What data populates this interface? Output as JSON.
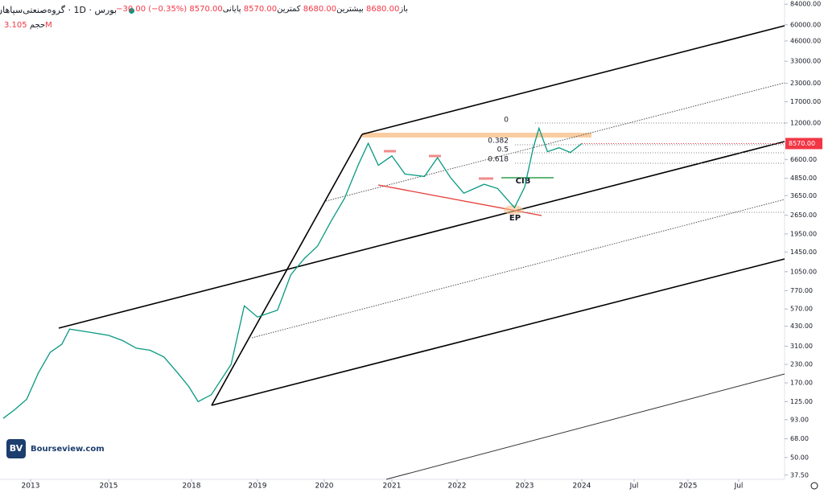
{
  "header": {
    "exchange": "بورس",
    "interval": "1D",
    "symbol": "گروه‌صنعتی‌سپاهان",
    "open_label": "باز",
    "open": "8680.00",
    "high_label": "بیشترین",
    "high": "8680.00",
    "low_label": "کمترین",
    "low": "8570.00",
    "close_label": "پایانی",
    "close": "8570.00",
    "change": "−30.00 (−0.35%)",
    "volume_label": "حجم",
    "volume": "3.105M"
  },
  "watermark": "Bourseview.com",
  "chart_data": {
    "type": "line",
    "log_scale": true,
    "color": "#089981",
    "x": [
      2012.3,
      2012.6,
      2012.9,
      2013.2,
      2013.5,
      2013.8,
      2014.0,
      2014.5,
      2015.0,
      2015.5,
      2016.0,
      2016.5,
      2017.0,
      2017.5,
      2017.9,
      2018.1,
      2018.3,
      2018.6,
      2018.8,
      2019.0,
      2019.3,
      2019.5,
      2019.7,
      2019.9,
      2020.1,
      2020.3,
      2020.5,
      2020.65,
      2020.8,
      2021.0,
      2021.2,
      2021.5,
      2021.7,
      2021.9,
      2022.1,
      2022.4,
      2022.6,
      2022.85,
      2023.0,
      2023.15,
      2023.25,
      2023.4,
      2023.6,
      2023.8,
      2024.0
    ],
    "values": [
      95,
      110,
      130,
      200,
      280,
      320,
      410,
      390,
      370,
      340,
      300,
      290,
      260,
      200,
      160,
      125,
      140,
      230,
      600,
      500,
      560,
      1000,
      1300,
      1600,
      2400,
      3500,
      6000,
      8600,
      6000,
      7000,
      5200,
      5000,
      6800,
      4900,
      3800,
      4400,
      4100,
      3000,
      4200,
      8000,
      11000,
      7500,
      8000,
      7400,
      8570
    ],
    "last_label": "8570.00",
    "ylim": [
      35,
      90000
    ],
    "yticks": [
      {
        "value": 84000,
        "label": "84000.00"
      },
      {
        "value": 60000,
        "label": "60000.00"
      },
      {
        "value": 46000,
        "label": "46000.00"
      },
      {
        "value": 33000,
        "label": "33000.00"
      },
      {
        "value": 23000,
        "label": "23000.00"
      },
      {
        "value": 17000,
        "label": "17000.00"
      },
      {
        "value": 12000,
        "label": "12000.00"
      },
      {
        "value": 6600,
        "label": "6600.00"
      },
      {
        "value": 4850,
        "label": "4850.00"
      },
      {
        "value": 3650,
        "label": "3650.00"
      },
      {
        "value": 2650,
        "label": "2650.00"
      },
      {
        "value": 1950,
        "label": "1950.00"
      },
      {
        "value": 1450,
        "label": "1450.00"
      },
      {
        "value": 1050,
        "label": "1050.00"
      },
      {
        "value": 770,
        "label": "770.00"
      },
      {
        "value": 570,
        "label": "570.00"
      },
      {
        "value": 430,
        "label": "430.00"
      },
      {
        "value": 310,
        "label": "310.00"
      },
      {
        "value": 230,
        "label": "230.00"
      },
      {
        "value": 170,
        "label": "170.00"
      },
      {
        "value": 125,
        "label": "125.00"
      },
      {
        "value": 93,
        "label": "93.00"
      },
      {
        "value": 68,
        "label": "68.00"
      },
      {
        "value": 50,
        "label": "50.00"
      },
      {
        "value": 37.5,
        "label": "37.50"
      }
    ],
    "xticks": [
      2013,
      2015,
      2018,
      2019,
      2020,
      2021,
      2022,
      2023,
      2024,
      {
        "value": 2024.5,
        "label": "Jul"
      },
      2025,
      {
        "value": 2025.5,
        "label": "Jul"
      }
    ],
    "annotations": {
      "fib0": "0",
      "fib382": "0.382",
      "fib5": "0.5",
      "fib618": "0.618",
      "cib": "CIB",
      "ep": "EP"
    }
  }
}
